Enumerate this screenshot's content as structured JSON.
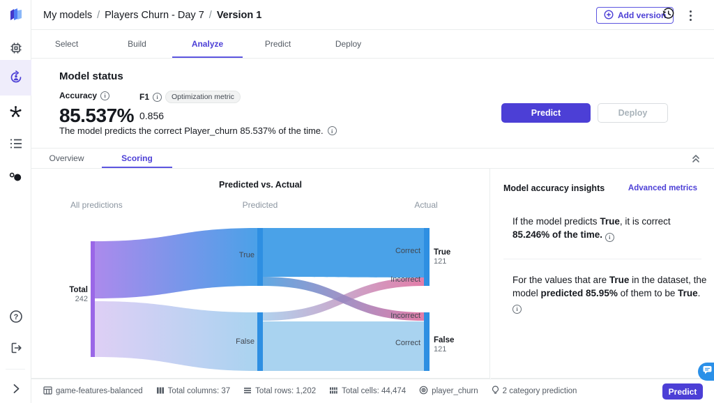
{
  "icons": {
    "info": "i",
    "help": "?"
  },
  "colors": {
    "accent": "#4c3fd6",
    "tab_underline": "#5c55e0",
    "node_blue": "#2e8fe2",
    "node_purple": "#9a67e7",
    "flow_blue": "#4aa2e8",
    "flow_light_blue": "#a9d3f0",
    "incorrect_pink": "#df6f9f",
    "link_text": "#4c3fd6",
    "chat_blue": "#2b90e8"
  },
  "sidebar_icon_names": [
    "app-logo",
    "processor",
    "model-training",
    "ready-models",
    "list-nav",
    "data-circles",
    "help",
    "sign-out",
    "expand"
  ],
  "header": {
    "breadcrumb": [
      "My models",
      "Players Churn - Day 7",
      "Version 1"
    ],
    "separator": "/",
    "add_version_label": "Add version"
  },
  "main_tabs": [
    "Select",
    "Build",
    "Analyze",
    "Predict",
    "Deploy"
  ],
  "model_status": {
    "heading": "Model status",
    "accuracy_label": "Accuracy",
    "accuracy_value": "85.537%",
    "f1_label": "F1",
    "f1_badge": "Optimization metric",
    "f1_value": "0.856",
    "description": "The model predicts the correct Player_churn 85.537% of the time.",
    "predict_button": "Predict",
    "deploy_button": "Deploy"
  },
  "sub_tabs": [
    "Overview",
    "Scoring"
  ],
  "chart_data": {
    "type": "sankey",
    "title": "Predicted vs. Actual",
    "column_labels": [
      "All predictions",
      "Predicted",
      "Actual"
    ],
    "nodes": [
      {
        "id": "total",
        "label": "Total",
        "value": 242
      },
      {
        "id": "predicted-true",
        "label": "True"
      },
      {
        "id": "predicted-false",
        "label": "False"
      },
      {
        "id": "actual-true",
        "label": "True",
        "value": 121
      },
      {
        "id": "actual-false",
        "label": "False",
        "value": 121
      }
    ],
    "links": [
      {
        "source": "total",
        "target": "predicted-true",
        "value": 122
      },
      {
        "source": "total",
        "target": "predicted-false",
        "value": 120
      },
      {
        "source": "predicted-true",
        "target": "actual-true",
        "label": "Correct",
        "value": 104
      },
      {
        "source": "predicted-true",
        "target": "actual-false",
        "label": "Incorrect",
        "value": 18
      },
      {
        "source": "predicted-false",
        "target": "actual-true",
        "label": "Incorrect",
        "value": 17
      },
      {
        "source": "predicted-false",
        "target": "actual-false",
        "label": "Correct",
        "value": 103
      }
    ]
  },
  "insights": {
    "heading": "Model accuracy insights",
    "link": "Advanced metrics",
    "items": [
      [
        {
          "t": "If the model predicts ",
          "b": 0
        },
        {
          "t": "True",
          "b": 1
        },
        {
          "t": ", it is correct ",
          "b": 0
        },
        {
          "t": "85.246% of the time.",
          "b": 1
        },
        {
          "t": " ",
          "b": 0
        }
      ],
      [
        {
          "t": "For the values that are ",
          "b": 0
        },
        {
          "t": "True",
          "b": 1
        },
        {
          "t": " in the dataset, the model ",
          "b": 0
        },
        {
          "t": "predicted 85.95%",
          "b": 1
        },
        {
          "t": " of them to be ",
          "b": 0
        },
        {
          "t": "True",
          "b": 1
        },
        {
          "t": ". ",
          "b": 0
        }
      ]
    ]
  },
  "footer": {
    "stats": [
      {
        "icon": "table",
        "label": "game-features-balanced"
      },
      {
        "icon": "columns",
        "label": "Total columns: 37"
      },
      {
        "icon": "rows",
        "label": "Total rows: 1,202"
      },
      {
        "icon": "cells",
        "label": "Total cells: 44,474"
      },
      {
        "icon": "target",
        "label": "player_churn"
      },
      {
        "icon": "bulb",
        "label": "2 category prediction"
      }
    ],
    "predict_label": "Predict"
  }
}
